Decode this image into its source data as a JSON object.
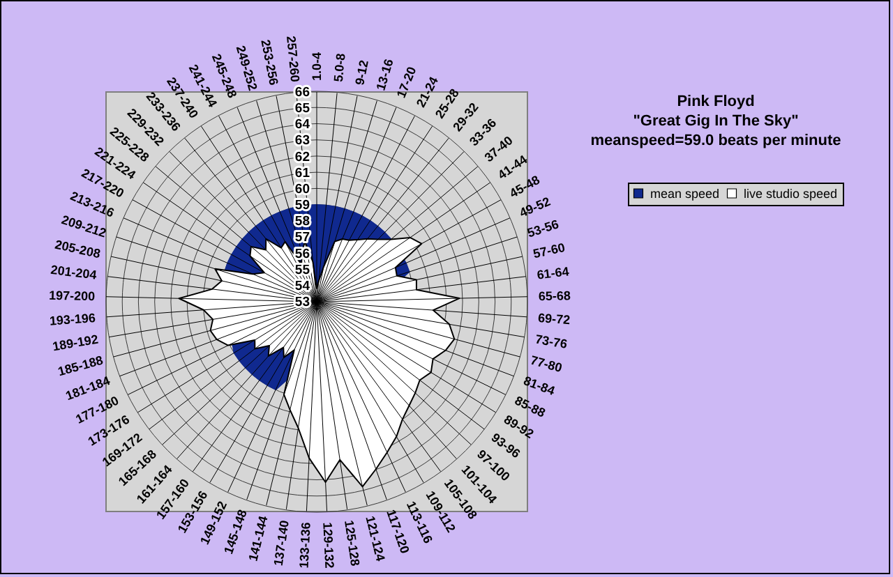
{
  "chart_data": {
    "type": "radar",
    "title": "Pink Floyd",
    "subtitle": "\"Great Gig In The Sky\"",
    "annotations": [
      "meanspeed=59.0 beats per minute"
    ],
    "categories": [
      "1.0-4",
      "5.0-8",
      "9-12",
      "13-16",
      "17-20",
      "21-24",
      "25-28",
      "29-32",
      "33-36",
      "37-40",
      "41-44",
      "45-48",
      "49-52",
      "53-56",
      "57-60",
      "61-64",
      "65-68",
      "69-72",
      "73-76",
      "77-80",
      "81-84",
      "85-88",
      "89-92",
      "93-96",
      "97-100",
      "101-104",
      "105-108",
      "109-112",
      "113-116",
      "117-120",
      "121-124",
      "125-128",
      "129-132",
      "133-136",
      "137-140",
      "141-144",
      "145-148",
      "149-152",
      "153-156",
      "157-160",
      "161-164",
      "165-168",
      "169-172",
      "173-176",
      "177-180",
      "181-184",
      "185-188",
      "189-192",
      "193-196",
      "197-200",
      "201-204",
      "205-208",
      "209-212",
      "213-216",
      "217-220",
      "221-224",
      "225-228",
      "229-232",
      "233-236",
      "237-240",
      "241-244",
      "245-248",
      "249-252",
      "253-256",
      "257-260"
    ],
    "series": [
      {
        "name": "mean speed",
        "color": "#10298f",
        "values": [
          59,
          59,
          59,
          59,
          59,
          59,
          59,
          59,
          59,
          59,
          null,
          null,
          59,
          59,
          null,
          null,
          null,
          null,
          null,
          null,
          null,
          null,
          null,
          null,
          null,
          null,
          null,
          null,
          null,
          null,
          null,
          null,
          null,
          null,
          null,
          null,
          null,
          59,
          59,
          59,
          59,
          59,
          59,
          59,
          null,
          null,
          null,
          null,
          null,
          null,
          null,
          59,
          null,
          59,
          59,
          59,
          59,
          59,
          59,
          59,
          59,
          59,
          59,
          59,
          59
        ]
      },
      {
        "name": "live studio speed",
        "color": "#ffffff",
        "values": [
          53.8,
          54.3,
          55.2,
          56.9,
          57.2,
          57.3,
          57.6,
          58.0,
          58.4,
          59.0,
          60.0,
          60.4,
          58.3,
          58.2,
          59.3,
          59.2,
          61.8,
          60.2,
          61.3,
          61.8,
          61.5,
          61.0,
          61.3,
          61.0,
          61.3,
          61.6,
          62.0,
          62.7,
          63.3,
          64.0,
          64.8,
          62.9,
          64.2,
          62.7,
          60.9,
          59.9,
          59.1,
          56.3,
          57.0,
          56.5,
          57.5,
          57.0,
          57.8,
          57.5,
          59.1,
          59.6,
          59.8,
          59.5,
          60.0,
          61.5,
          59.5,
          59.0,
          59.6,
          57.3,
          56.7,
          58.0,
          58.3,
          57.5,
          58.0,
          57.0,
          57.2,
          55.5,
          56.2,
          56.8,
          55.5
        ]
      }
    ],
    "ylim": [
      53,
      66
    ],
    "yticks": [
      53,
      54,
      55,
      56,
      57,
      58,
      59,
      60,
      61,
      62,
      63,
      64,
      65,
      66
    ],
    "grid": true,
    "legend": "right"
  }
}
